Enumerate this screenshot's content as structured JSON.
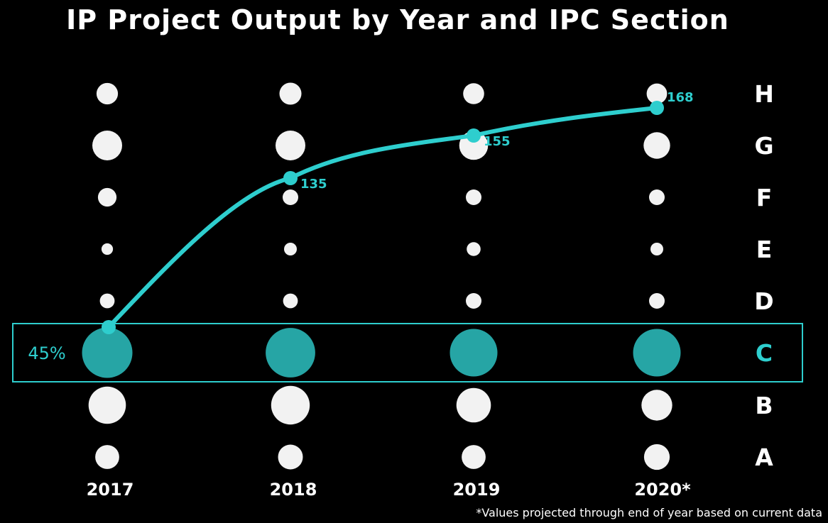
{
  "chart_data": {
    "type": "scatter",
    "title": "IP Project Output by Year and IPC Section",
    "x_categories": [
      "2017",
      "2018",
      "2019",
      "2020*"
    ],
    "y_categories": [
      "A",
      "B",
      "C",
      "D",
      "E",
      "F",
      "G",
      "H"
    ],
    "bubbles": [
      {
        "section": "A",
        "sizes": [
          2.0,
          2.2,
          2.0,
          2.4
        ]
      },
      {
        "section": "B",
        "sizes": [
          6.0,
          6.5,
          5.0,
          3.8
        ]
      },
      {
        "section": "C",
        "sizes": [
          12.0,
          11.5,
          10.5,
          10.5
        ]
      },
      {
        "section": "D",
        "sizes": [
          0.5,
          0.5,
          0.6,
          0.6
        ]
      },
      {
        "section": "E",
        "sizes": [
          0.2,
          0.3,
          0.4,
          0.3
        ]
      },
      {
        "section": "F",
        "sizes": [
          1.0,
          0.6,
          0.6,
          0.6
        ]
      },
      {
        "section": "G",
        "sizes": [
          3.5,
          3.5,
          3.2,
          2.6
        ]
      },
      {
        "section": "H",
        "sizes": [
          1.5,
          1.6,
          1.4,
          1.3
        ]
      }
    ],
    "highlight": {
      "section": "C",
      "label": "45%"
    },
    "line_series": {
      "points": [
        {
          "x": "2017",
          "value": 0,
          "label": ""
        },
        {
          "x": "2018",
          "value": 135,
          "label": "135"
        },
        {
          "x": "2019",
          "value": 155,
          "label": "155"
        },
        {
          "x": "2020*",
          "value": 168,
          "label": "168"
        }
      ]
    },
    "colors": {
      "background": "#000000",
      "bubble": "#f2f2f2",
      "highlight": "#26a5a5",
      "line": "#2ecece"
    },
    "footnote": "*Values projected through end of year based on current data"
  }
}
